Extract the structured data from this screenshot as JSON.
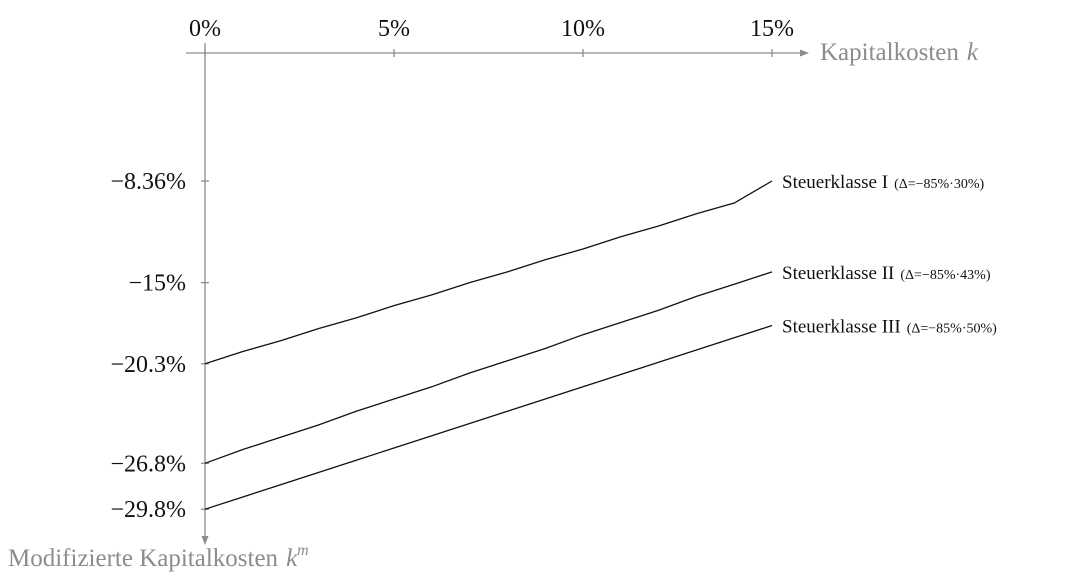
{
  "chart_data": {
    "type": "line",
    "x_axis": {
      "title": "Kapitalkosten",
      "title_symbol": "k",
      "ticks": [
        0,
        5,
        10,
        15
      ],
      "tick_labels": [
        "0%",
        "5%",
        "10%",
        "15%"
      ],
      "range": [
        0,
        16
      ],
      "position": "top"
    },
    "y_axis": {
      "title": "Modifizierte Kapitalkosten",
      "title_symbol": "k",
      "title_superscript": "m",
      "ticks": [
        -8.36,
        -15,
        -20.3,
        -26.8,
        -29.8
      ],
      "tick_labels": [
        "−8.36%",
        "−15%",
        "−20.3%",
        "−26.8%",
        "−29.8%"
      ],
      "range": [
        0,
        -31.5
      ],
      "inverted": true
    },
    "grid": false,
    "series": [
      {
        "name": "Steuerklasse I",
        "note": "(Δ=−85%·30%)",
        "x": [
          0,
          1,
          2,
          3,
          4,
          5,
          6,
          7,
          8,
          9,
          10,
          11,
          12,
          13,
          14,
          15
        ],
        "y": [
          -20.3,
          -19.5,
          -18.8,
          -18.0,
          -17.3,
          -16.5,
          -15.8,
          -15.0,
          -14.3,
          -13.5,
          -12.8,
          -12.0,
          -11.3,
          -10.5,
          -9.8,
          -8.36
        ]
      },
      {
        "name": "Steuerklasse II",
        "note": "(Δ=−85%·43%)",
        "x": [
          0,
          1,
          2,
          3,
          4,
          5,
          6,
          7,
          8,
          9,
          10,
          11,
          12,
          13,
          14,
          15
        ],
        "y": [
          -26.8,
          -25.9,
          -25.1,
          -24.3,
          -23.4,
          -22.6,
          -21.8,
          -20.9,
          -20.1,
          -19.3,
          -18.4,
          -17.6,
          -16.8,
          -15.9,
          -15.1,
          -14.3
        ]
      },
      {
        "name": "Steuerklasse III",
        "note": "(Δ=−85%·50%)",
        "x": [
          0,
          1,
          2,
          3,
          4,
          5,
          6,
          7,
          8,
          9,
          10,
          11,
          12,
          13,
          14,
          15
        ],
        "y": [
          -29.8,
          -29.0,
          -28.2,
          -27.4,
          -26.6,
          -25.8,
          -25.0,
          -24.2,
          -23.4,
          -22.6,
          -21.8,
          -21.0,
          -20.2,
          -19.4,
          -18.6,
          -17.8
        ]
      }
    ]
  }
}
